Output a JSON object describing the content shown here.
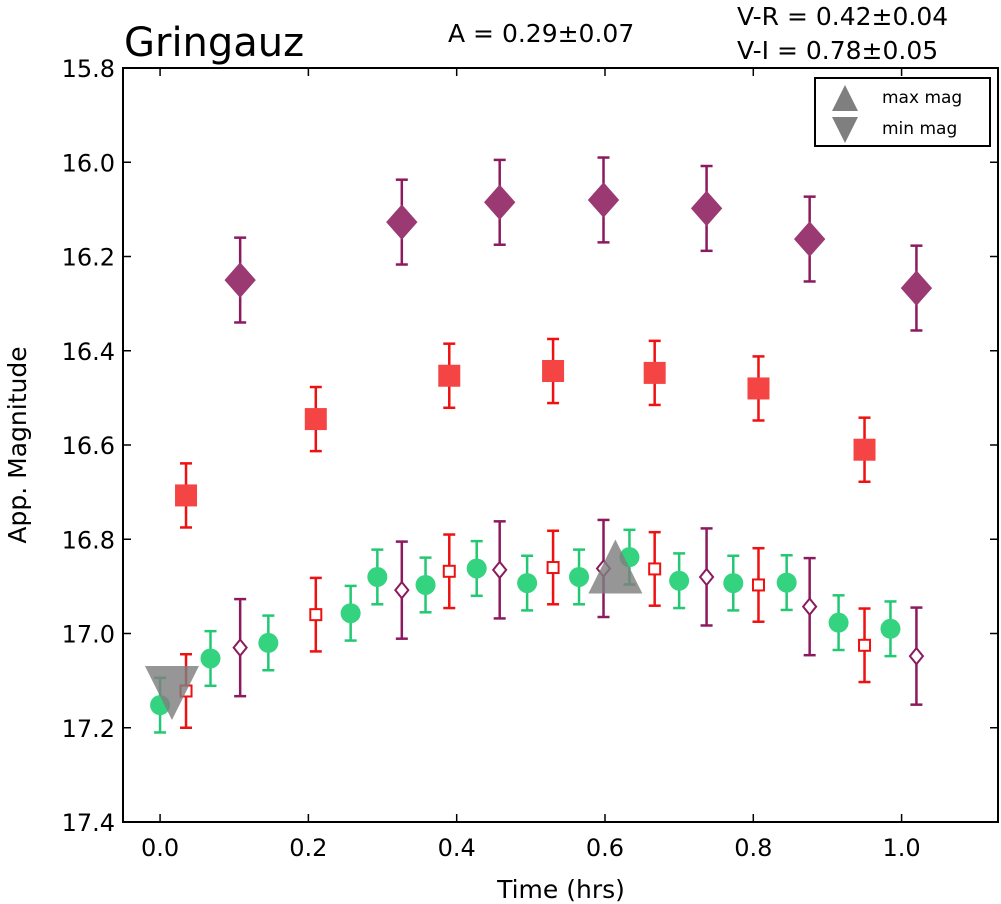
{
  "chart_data": {
    "type": "scatter",
    "title": "Gringauz",
    "annotations": {
      "amplitude": "A  = 0.29±0.07",
      "v_minus_r": "V-R = 0.42±0.04",
      "v_minus_i": "V-I  = 0.78±0.05"
    },
    "xlabel": "Time (hrs)",
    "ylabel": "App. Magnitude",
    "xlim": [
      -0.05,
      1.13
    ],
    "ylim": [
      17.4,
      15.8
    ],
    "y_inverted": true,
    "grid": false,
    "xticks": [
      0.0,
      0.2,
      0.4,
      0.6,
      0.8,
      1.0
    ],
    "xtick_labels": [
      "0.0",
      "0.2",
      "0.4",
      "0.6",
      "0.8",
      "1.0"
    ],
    "yticks": [
      15.8,
      16.0,
      16.2,
      16.4,
      16.6,
      16.8,
      17.0,
      17.2,
      17.4
    ],
    "ytick_labels": [
      "15.8",
      "16.0",
      "16.2",
      "16.4",
      "16.6",
      "16.8",
      "17.0",
      "17.2",
      "17.4"
    ],
    "legend": {
      "placement": "top-right",
      "entries": [
        {
          "label": "max mag",
          "marker": "triangle-up",
          "color": "#7f7f7f"
        },
        {
          "label": "min mag",
          "marker": "triangle-down",
          "color": "#7f7f7f"
        }
      ]
    },
    "series": [
      {
        "marker": "diamond-filled",
        "color": "#8b1a5e",
        "fill": "#9b3a72",
        "x": [
          0.108,
          0.326,
          0.458,
          0.598,
          0.737,
          0.876,
          1.02
        ],
        "y": [
          16.25,
          16.127,
          16.085,
          16.08,
          16.098,
          16.163,
          16.267
        ],
        "err": [
          0.09,
          0.09,
          0.09,
          0.09,
          0.09,
          0.09,
          0.09
        ]
      },
      {
        "marker": "square-filled",
        "color": "#ee1111",
        "fill": "#f44444",
        "x": [
          0.035,
          0.21,
          0.39,
          0.53,
          0.667,
          0.807,
          0.95
        ],
        "y": [
          16.707,
          16.545,
          16.453,
          16.443,
          16.447,
          16.48,
          16.61
        ],
        "err": [
          0.068,
          0.068,
          0.068,
          0.068,
          0.068,
          0.068,
          0.068
        ]
      },
      {
        "marker": "circle-filled",
        "color": "#22c872",
        "fill": "#33d37f",
        "x": [
          0.0,
          0.068,
          0.146,
          0.257,
          0.293,
          0.358,
          0.427,
          0.495,
          0.565,
          0.633,
          0.7,
          0.773,
          0.845,
          0.915,
          0.985
        ],
        "y": [
          17.152,
          17.053,
          17.02,
          16.957,
          16.88,
          16.897,
          16.862,
          16.893,
          16.88,
          16.838,
          16.888,
          16.893,
          16.892,
          16.977,
          16.99
        ],
        "err": [
          0.058,
          0.058,
          0.058,
          0.058,
          0.058,
          0.058,
          0.058,
          0.058,
          0.058,
          0.058,
          0.058,
          0.058,
          0.058,
          0.058,
          0.058
        ]
      },
      {
        "marker": "square-open",
        "color": "#ee1111",
        "x": [
          0.035,
          0.21,
          0.39,
          0.53,
          0.667,
          0.807,
          0.95
        ],
        "y": [
          17.122,
          16.96,
          16.868,
          16.86,
          16.863,
          16.897,
          17.025
        ],
        "err": [
          0.078,
          0.078,
          0.078,
          0.078,
          0.078,
          0.078,
          0.078
        ]
      },
      {
        "marker": "diamond-open",
        "color": "#8b1a5e",
        "x": [
          0.108,
          0.326,
          0.458,
          0.598,
          0.737,
          0.876,
          1.02
        ],
        "y": [
          17.03,
          16.908,
          16.865,
          16.862,
          16.88,
          16.943,
          17.048
        ],
        "err": [
          0.103,
          0.103,
          0.103,
          0.103,
          0.103,
          0.103,
          0.103
        ]
      },
      {
        "marker": "triangle-up",
        "color": "#7f7f7f",
        "x": [
          0.614
        ],
        "y": [
          16.862
        ],
        "err": []
      },
      {
        "marker": "triangle-down",
        "color": "#7f7f7f",
        "x": [
          0.016
        ],
        "y": [
          17.122
        ],
        "err": []
      }
    ]
  }
}
